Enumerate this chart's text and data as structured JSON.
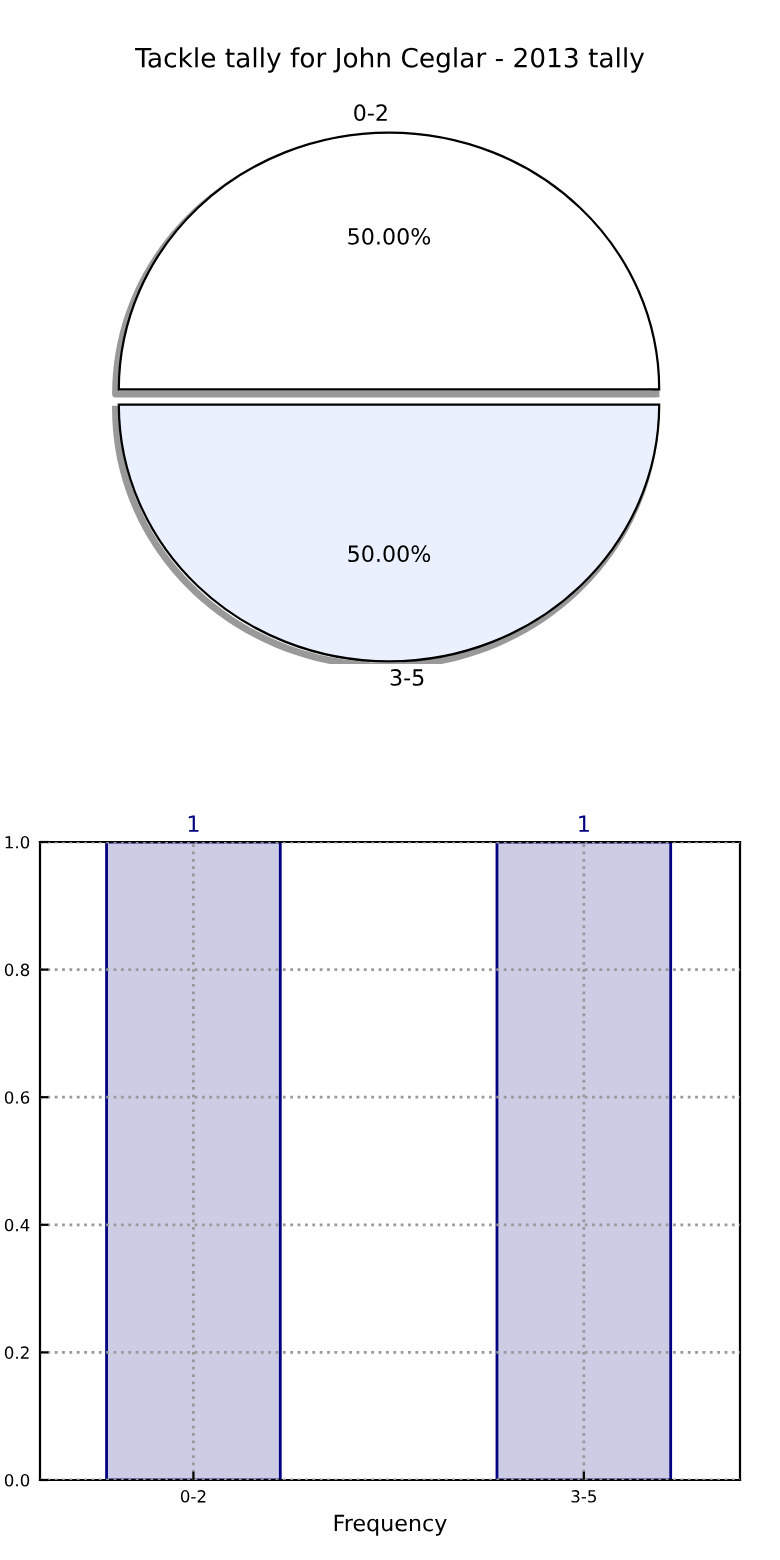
{
  "chart_data": [
    {
      "type": "pie",
      "title": "Tackle tally for John Ceglar - 2013 tally",
      "categories": [
        "0-2",
        "3-5"
      ],
      "values": [
        50,
        50
      ],
      "colors": [
        "#ffffff",
        "#eaf0fd"
      ],
      "value_labels": [
        "50.00%",
        "50.00%"
      ]
    },
    {
      "type": "bar",
      "xlabel": "Frequency",
      "categories": [
        "0-2",
        "3-5"
      ],
      "series": [
        {
          "color": "#cccce5",
          "values": [
            1,
            1
          ]
        }
      ],
      "ylim": [
        0,
        1
      ],
      "yticks": [
        {
          "value": 0,
          "label": "0.0"
        },
        {
          "value": 0.2,
          "label": "0.2"
        },
        {
          "value": 0.4,
          "label": "0.4"
        },
        {
          "value": 0.6,
          "label": "0.6"
        },
        {
          "value": 0.8,
          "label": "0.8"
        },
        {
          "value": 1,
          "label": "1.0"
        }
      ],
      "grid": true,
      "data_labels": true
    }
  ]
}
